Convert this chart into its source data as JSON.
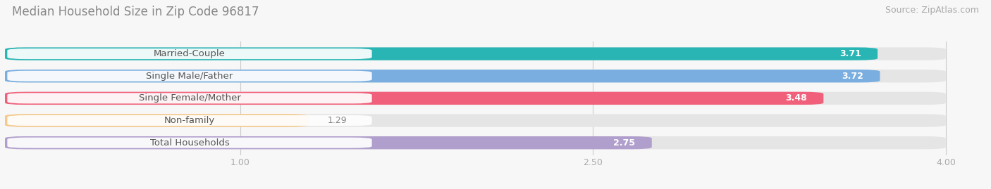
{
  "title": "Median Household Size in Zip Code 96817",
  "source": "Source: ZipAtlas.com",
  "categories": [
    "Married-Couple",
    "Single Male/Father",
    "Single Female/Mother",
    "Non-family",
    "Total Households"
  ],
  "values": [
    3.71,
    3.72,
    3.48,
    1.29,
    2.75
  ],
  "bar_colors": [
    "#2ab5b5",
    "#7aaee0",
    "#f0607a",
    "#f5c98a",
    "#b09fcc"
  ],
  "xlim_min": 0,
  "xlim_max": 4.15,
  "xdisplay_max": 4.0,
  "xticks": [
    1.0,
    2.5,
    4.0
  ],
  "background_color": "#f7f7f7",
  "bar_bg_color": "#e5e5e5",
  "title_fontsize": 12,
  "label_fontsize": 9.5,
  "value_fontsize": 9,
  "source_fontsize": 9,
  "bar_height": 0.58,
  "bar_gap": 0.15
}
